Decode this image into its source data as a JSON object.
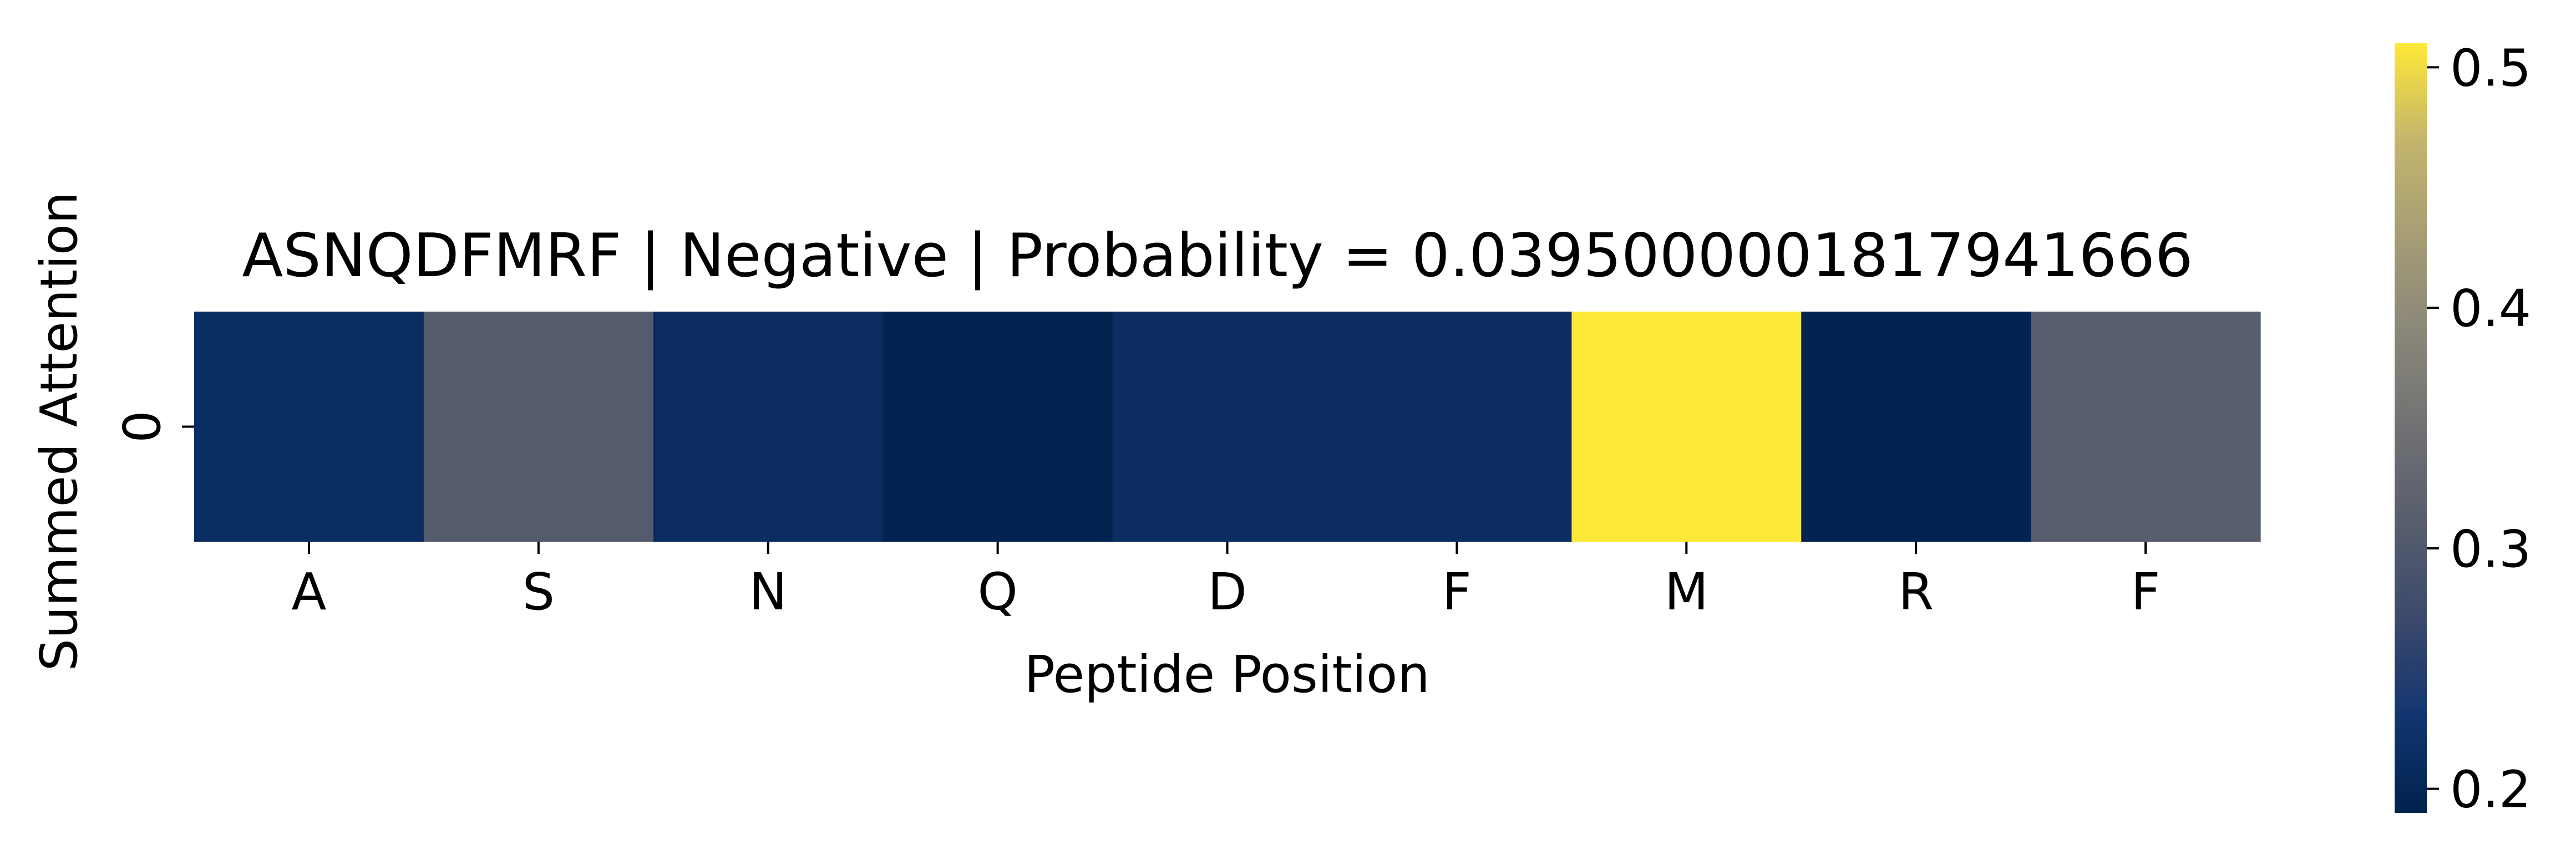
{
  "chart_data": {
    "type": "heatmap",
    "title": "ASNQDFMRF | Negative | Probability = 0.0395000001817941666",
    "xlabel": "Peptide Position",
    "ylabel": "Summed Attention",
    "x_categories": [
      "A",
      "S",
      "N",
      "Q",
      "D",
      "F",
      "M",
      "R",
      "F"
    ],
    "y_categories": [
      "0"
    ],
    "values": [
      [
        0.213,
        0.305,
        0.212,
        0.193,
        0.214,
        0.214,
        0.51,
        0.193,
        0.31
      ]
    ],
    "colormap": "cividis",
    "color_range": [
      0.19,
      0.51
    ],
    "colorbar": {
      "ticks": [
        0.2,
        0.3,
        0.4,
        0.5
      ],
      "tick_labels": [
        "0.2",
        "0.3",
        "0.4",
        "0.5"
      ]
    },
    "grid": false,
    "legend": "colorbar-right"
  }
}
